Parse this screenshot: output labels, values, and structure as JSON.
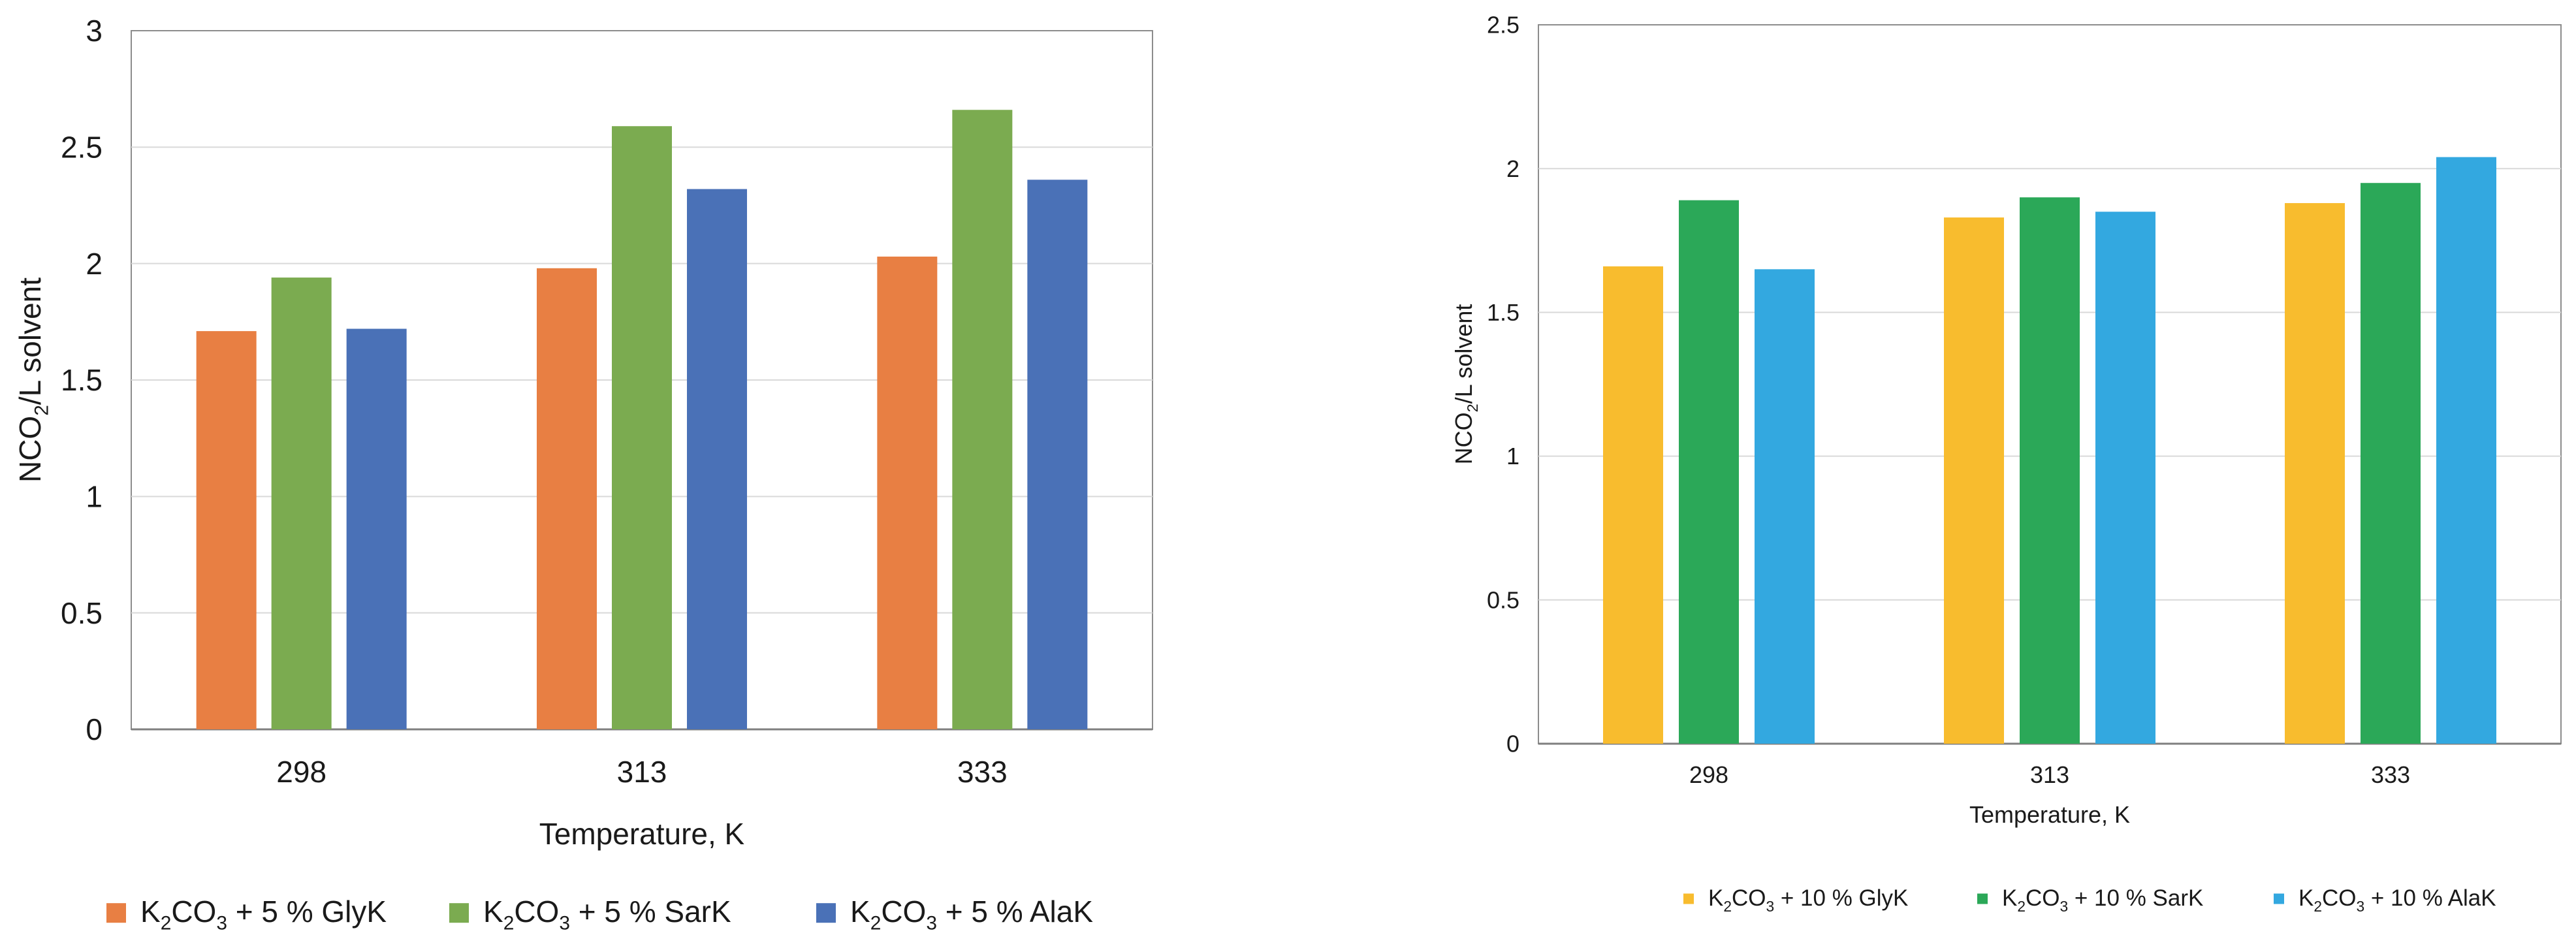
{
  "chart_data": [
    {
      "type": "bar",
      "categories": [
        "298",
        "313",
        "333"
      ],
      "series": [
        {
          "name": "K2CO3 + 5 % GlyK",
          "legend": {
            "pre": "K",
            "s1": "2",
            "mid": "CO",
            "s2": "3",
            "post": " + 5 % GlyK"
          },
          "color": "#E87F43",
          "values": [
            1.71,
            1.98,
            2.03
          ]
        },
        {
          "name": "K2CO3 + 5 % SarK",
          "legend": {
            "pre": "K",
            "s1": "2",
            "mid": "CO",
            "s2": "3",
            "post": " + 5 % SarK"
          },
          "color": "#7BAB50",
          "values": [
            1.94,
            2.59,
            2.66
          ]
        },
        {
          "name": "K2CO3 + 5 % AlaK",
          "legend": {
            "pre": "K",
            "s1": "2",
            "mid": "CO",
            "s2": "3",
            "post": " + 5 % AlaK"
          },
          "color": "#4A71B7",
          "values": [
            1.72,
            2.32,
            2.36
          ]
        }
      ],
      "ylim": [
        0,
        3
      ],
      "yticks": [
        "0",
        "0.5",
        "1",
        "1.5",
        "2",
        "2.5",
        "3"
      ],
      "xlabel": "Temperature, K",
      "ylabel": {
        "pre": "NCO",
        "sub": "2",
        "post": "/L solvent"
      },
      "grid": true,
      "legend_position": "bottom"
    },
    {
      "type": "bar",
      "categories": [
        "298",
        "313",
        "333"
      ],
      "series": [
        {
          "name": "K2CO3 + 10 % GlyK",
          "legend": {
            "pre": "K",
            "s1": "2",
            "mid": "CO",
            "s2": "3",
            "post": " + 10 % GlyK"
          },
          "color": "#F8BC2E",
          "values": [
            1.66,
            1.83,
            1.88
          ]
        },
        {
          "name": "K2CO3 + 10 % SarK",
          "legend": {
            "pre": "K",
            "s1": "2",
            "mid": "CO",
            "s2": "3",
            "post": " + 10 % SarK"
          },
          "color": "#2BA858",
          "values": [
            1.89,
            1.9,
            1.95
          ]
        },
        {
          "name": "K2CO3 + 10 % AlaK",
          "legend": {
            "pre": "K",
            "s1": "2",
            "mid": "CO",
            "s2": "3",
            "post": " + 10 % AlaK"
          },
          "color": "#33A8E0",
          "values": [
            1.65,
            1.85,
            2.04
          ]
        }
      ],
      "ylim": [
        0,
        2.5
      ],
      "yticks": [
        "0",
        "0.5",
        "1",
        "1.5",
        "2",
        "2.5"
      ],
      "xlabel": "Temperature, K",
      "ylabel": {
        "pre": "NCO",
        "sub": "2",
        "post": "/L solvent"
      },
      "grid": true,
      "legend_position": "bottom"
    }
  ]
}
